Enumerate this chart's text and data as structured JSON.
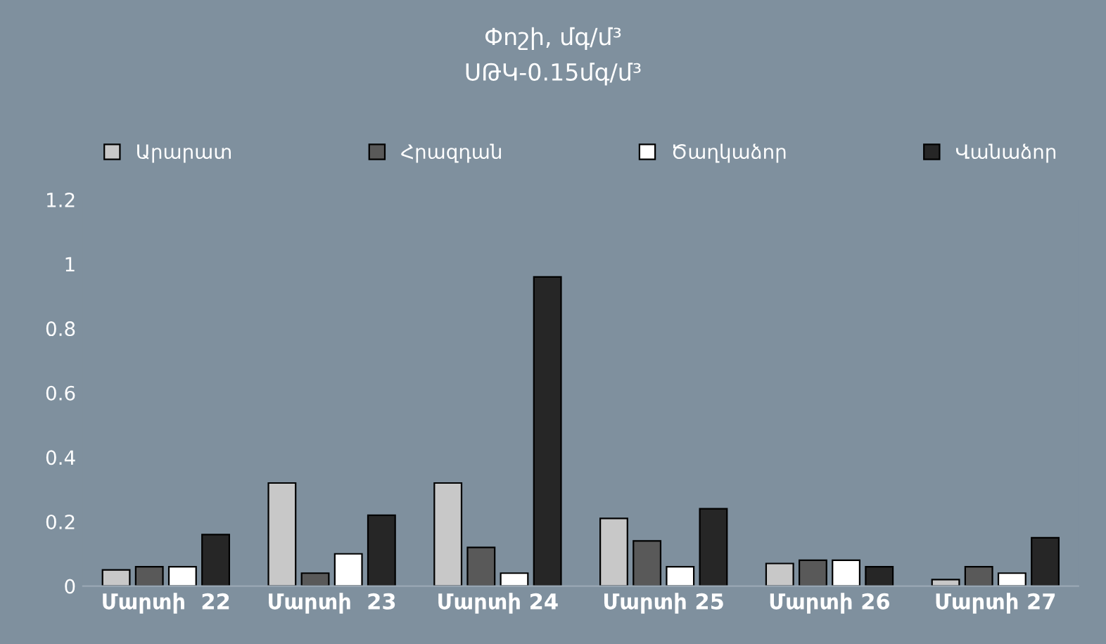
{
  "chart_data": {
    "type": "bar",
    "title": "Փոշի, մգ/մ³",
    "subtitle": "ՍԹԿ-0.15մգ/մ³",
    "categories": [
      "Մարտի  22",
      "Մարտի  23",
      "Մարտի 24",
      "Մարտի 25",
      "Մարտի 26",
      "Մարտի 27"
    ],
    "series": [
      {
        "name": "Արարատ",
        "color": "#c8c8c8",
        "values": [
          0.05,
          0.32,
          0.32,
          0.21,
          0.07,
          0.02
        ]
      },
      {
        "name": "Հրազդան",
        "color": "#595959",
        "values": [
          0.06,
          0.04,
          0.12,
          0.14,
          0.08,
          0.06
        ]
      },
      {
        "name": "Ծաղկաձոր",
        "color": "#ffffff",
        "values": [
          0.06,
          0.1,
          0.04,
          0.06,
          0.08,
          0.04
        ]
      },
      {
        "name": "Վանաձոր",
        "color": "#262626",
        "values": [
          0.16,
          0.22,
          0.96,
          0.24,
          0.06,
          0.15
        ]
      }
    ],
    "ylim": [
      0,
      1.2
    ],
    "yticks": [
      0,
      0.2,
      0.4,
      0.6,
      0.8,
      1,
      1.2
    ],
    "legend": "top",
    "grid": false
  }
}
